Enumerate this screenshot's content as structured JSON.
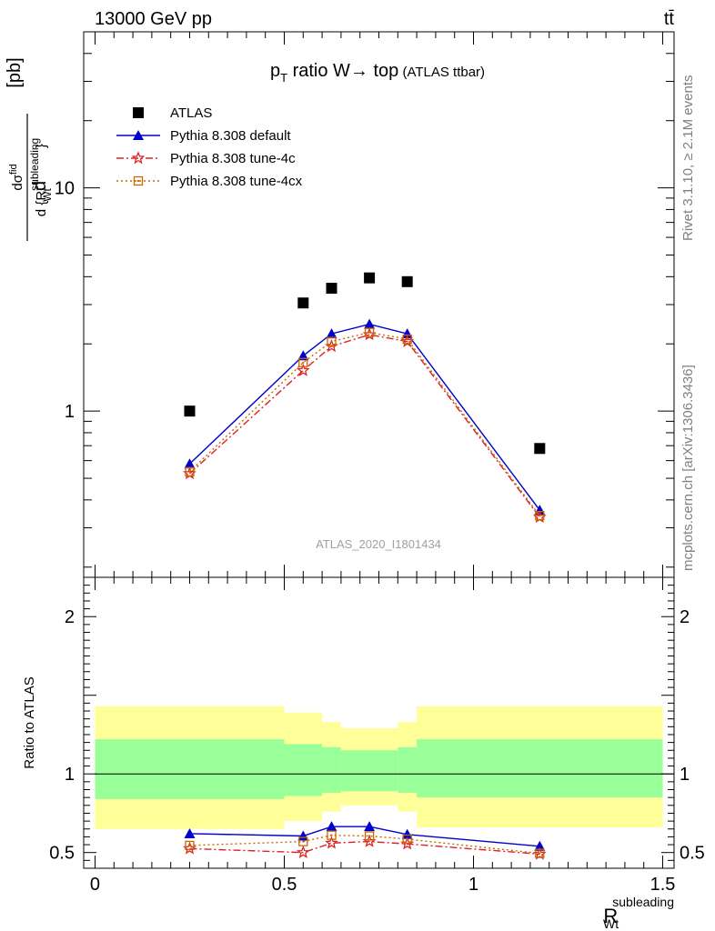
{
  "header": {
    "energy_label": "13000 GeV pp",
    "process_label": "tt̄"
  },
  "side_labels": {
    "rivet": "Rivet 3.1.10, ≥ 2.1M events",
    "mcplots": "mcplots.cern.ch [arXiv:1306.3436]"
  },
  "watermark": "ATLAS_2020_I1801434",
  "colors": {
    "atlas": "#000000",
    "default": "#0000cc",
    "tune4c": "#dd2222",
    "tune4cx": "#cc6600",
    "band_inner": "#99ff99",
    "band_outer": "#ffff99"
  },
  "chart_data": [
    {
      "type": "line",
      "title": "p_T ratio W → top (ATLAS ttbar)",
      "title_parts": {
        "p": "p",
        "sub": "T",
        "rest": " ratio W→ top",
        "small": " (ATLAS ttbar)"
      },
      "ylabel_parts": {
        "d1": "d",
        "num": "dσ",
        "num_sup": "fid",
        "den": "d {R",
        "den_sup": "subleading",
        "den_sub": "Wt",
        "den_close": "}",
        "unit": "[pb]"
      },
      "y_scale": "log",
      "ylim": [
        0.18,
        50
      ],
      "xlim": [
        -0.03,
        1.53
      ],
      "y_tick_labels": [
        {
          "value": 1,
          "label": "1"
        },
        {
          "value": 10,
          "label": "10"
        }
      ],
      "x": [
        0.25,
        0.55,
        0.625,
        0.725,
        0.825,
        1.175
      ],
      "series": [
        {
          "name": "ATLAS",
          "marker": "square",
          "values": [
            1.0,
            3.05,
            3.55,
            3.95,
            3.8,
            0.68
          ]
        },
        {
          "name": "Pythia 8.308 default",
          "marker": "triangle",
          "line": "solid",
          "values": [
            0.58,
            1.77,
            2.22,
            2.45,
            2.22,
            0.36
          ]
        },
        {
          "name": "Pythia 8.308 tune-4c",
          "marker": "star",
          "line": "dashdot",
          "values": [
            0.525,
            1.52,
            1.95,
            2.2,
            2.05,
            0.335
          ]
        },
        {
          "name": "Pythia 8.308 tune-4cx",
          "marker": "open-square",
          "line": "dotted",
          "values": [
            0.535,
            1.65,
            2.05,
            2.25,
            2.1,
            0.34
          ]
        }
      ]
    },
    {
      "type": "line",
      "ylabel": "Ratio to ATLAS",
      "xlabel_parts": {
        "base": "R",
        "sup": "subleading",
        "sub": "Wt"
      },
      "ylim": [
        0.4,
        2.25
      ],
      "xlim": [
        -0.03,
        1.53
      ],
      "x_tick_labels": [
        {
          "value": 0,
          "label": "0"
        },
        {
          "value": 0.5,
          "label": "0.5"
        },
        {
          "value": 1,
          "label": "1"
        },
        {
          "value": 1.5,
          "label": "1.5"
        }
      ],
      "y_tick_labels": [
        {
          "value": 0.5,
          "label": "0.5"
        },
        {
          "value": 1,
          "label": "1"
        },
        {
          "value": 2,
          "label": "2"
        }
      ],
      "reference_line": 1.0,
      "bands": {
        "x_edges": [
          0.0,
          0.5,
          0.6,
          0.65,
          0.8,
          0.85,
          1.5
        ],
        "inner": [
          [
            0.84,
            1.22
          ],
          [
            0.86,
            1.19
          ],
          [
            0.88,
            1.17
          ],
          [
            0.89,
            1.15
          ],
          [
            0.88,
            1.17
          ],
          [
            0.85,
            1.22
          ]
        ],
        "outer": [
          [
            0.65,
            1.43
          ],
          [
            0.7,
            1.39
          ],
          [
            0.76,
            1.33
          ],
          [
            0.8,
            1.29
          ],
          [
            0.76,
            1.33
          ],
          [
            0.66,
            1.43
          ]
        ]
      },
      "x": [
        0.25,
        0.55,
        0.625,
        0.725,
        0.825,
        1.175
      ],
      "series": [
        {
          "name": "Pythia 8.308 default",
          "values": [
            0.62,
            0.605,
            0.665,
            0.665,
            0.615,
            0.54
          ]
        },
        {
          "name": "Pythia 8.308 tune-4c",
          "values": [
            0.525,
            0.5,
            0.56,
            0.57,
            0.555,
            0.49
          ]
        },
        {
          "name": "Pythia 8.308 tune-4cx",
          "values": [
            0.545,
            0.57,
            0.61,
            0.605,
            0.585,
            0.495
          ]
        }
      ]
    }
  ]
}
